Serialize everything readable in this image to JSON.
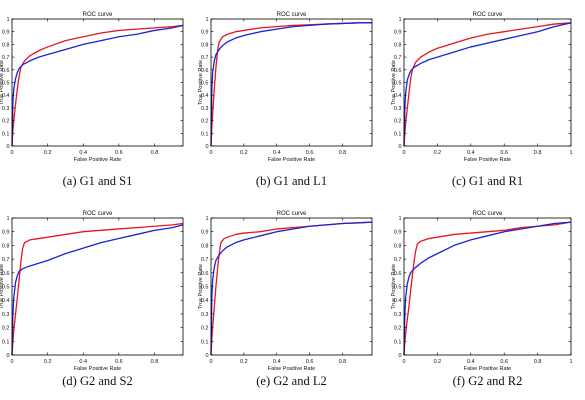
{
  "colors": {
    "red": "#e8141e",
    "blue": "#1a22d6",
    "axis": "#000000"
  },
  "chart_data": [
    {
      "type": "line",
      "title": "ROC curve",
      "xlabel": "False Positive Rate",
      "ylabel": "True Positive Rate",
      "caption": "(a) G1 and S1",
      "xlim": [
        0,
        0.96
      ],
      "ylim": [
        0,
        1
      ],
      "xticks": [
        "0",
        "0.2",
        "0.4",
        "0.6",
        "0.8"
      ],
      "yticks": [
        "0",
        "0.1",
        "0.2",
        "0.3",
        "0.4",
        "0.5",
        "0.6",
        "0.7",
        "0.8",
        "0.9",
        "1"
      ],
      "series": [
        {
          "color": "red",
          "x": [
            0,
            0.005,
            0.01,
            0.02,
            0.03,
            0.04,
            0.05,
            0.07,
            0.1,
            0.15,
            0.2,
            0.3,
            0.4,
            0.5,
            0.6,
            0.7,
            0.8,
            0.9,
            0.96
          ],
          "y": [
            0,
            0.12,
            0.2,
            0.33,
            0.45,
            0.55,
            0.62,
            0.67,
            0.71,
            0.75,
            0.78,
            0.83,
            0.86,
            0.89,
            0.91,
            0.92,
            0.93,
            0.94,
            0.95
          ]
        },
        {
          "color": "blue",
          "x": [
            0,
            0.005,
            0.01,
            0.02,
            0.03,
            0.04,
            0.06,
            0.1,
            0.15,
            0.2,
            0.3,
            0.4,
            0.5,
            0.6,
            0.7,
            0.8,
            0.9,
            0.96
          ],
          "y": [
            0,
            0.35,
            0.45,
            0.53,
            0.58,
            0.61,
            0.64,
            0.67,
            0.7,
            0.72,
            0.76,
            0.8,
            0.83,
            0.86,
            0.88,
            0.91,
            0.93,
            0.95
          ]
        }
      ]
    },
    {
      "type": "line",
      "title": "ROC curve",
      "xlabel": "False Positive Rate",
      "ylabel": "True Positive Rate",
      "caption": "(b) G1 and L1",
      "xlim": [
        0,
        0.98
      ],
      "ylim": [
        0,
        1
      ],
      "xticks": [
        "0",
        "0.2",
        "0.4",
        "0.6",
        "0.8"
      ],
      "yticks": [
        "0",
        "0.1",
        "0.2",
        "0.3",
        "0.4",
        "0.5",
        "0.6",
        "0.7",
        "0.8",
        "0.9",
        "1"
      ],
      "series": [
        {
          "color": "red",
          "x": [
            0,
            0.005,
            0.01,
            0.02,
            0.03,
            0.04,
            0.05,
            0.07,
            0.1,
            0.15,
            0.2,
            0.3,
            0.4,
            0.5,
            0.6,
            0.7,
            0.8,
            0.9,
            0.98
          ],
          "y": [
            0,
            0.15,
            0.25,
            0.45,
            0.62,
            0.75,
            0.82,
            0.86,
            0.88,
            0.9,
            0.91,
            0.93,
            0.94,
            0.95,
            0.955,
            0.96,
            0.965,
            0.97,
            0.97
          ]
        },
        {
          "color": "blue",
          "x": [
            0,
            0.005,
            0.01,
            0.02,
            0.03,
            0.05,
            0.07,
            0.1,
            0.15,
            0.2,
            0.3,
            0.4,
            0.5,
            0.6,
            0.7,
            0.8,
            0.9,
            0.98
          ],
          "y": [
            0,
            0.45,
            0.58,
            0.67,
            0.72,
            0.76,
            0.79,
            0.82,
            0.85,
            0.87,
            0.9,
            0.92,
            0.94,
            0.95,
            0.96,
            0.965,
            0.97,
            0.97
          ]
        }
      ]
    },
    {
      "type": "line",
      "title": "ROC curve",
      "xlabel": "False Positive Rate",
      "ylabel": "True Positive Rate",
      "caption": "(c) G1 and R1",
      "xlim": [
        0,
        1
      ],
      "ylim": [
        0,
        1
      ],
      "xticks": [
        "0",
        "0.2",
        "0.4",
        "0.6",
        "0.8",
        "1"
      ],
      "yticks": [
        "0",
        "0.1",
        "0.2",
        "0.3",
        "0.4",
        "0.5",
        "0.6",
        "0.7",
        "0.8",
        "0.9",
        "1"
      ],
      "series": [
        {
          "color": "red",
          "x": [
            0,
            0.005,
            0.01,
            0.02,
            0.03,
            0.04,
            0.05,
            0.07,
            0.1,
            0.15,
            0.2,
            0.3,
            0.4,
            0.5,
            0.6,
            0.7,
            0.8,
            0.9,
            1
          ],
          "y": [
            0,
            0.1,
            0.18,
            0.3,
            0.42,
            0.53,
            0.6,
            0.66,
            0.7,
            0.74,
            0.77,
            0.81,
            0.85,
            0.88,
            0.9,
            0.92,
            0.94,
            0.96,
            0.97
          ]
        },
        {
          "color": "blue",
          "x": [
            0,
            0.005,
            0.01,
            0.02,
            0.03,
            0.04,
            0.06,
            0.1,
            0.15,
            0.2,
            0.3,
            0.4,
            0.5,
            0.6,
            0.7,
            0.8,
            0.9,
            1
          ],
          "y": [
            0,
            0.3,
            0.42,
            0.52,
            0.56,
            0.59,
            0.62,
            0.65,
            0.68,
            0.7,
            0.74,
            0.78,
            0.81,
            0.84,
            0.87,
            0.9,
            0.94,
            0.97
          ]
        }
      ]
    },
    {
      "type": "line",
      "title": "ROC curve",
      "xlabel": "False Positive Rate",
      "ylabel": "True Positive Rate",
      "caption": "(d) G2 and S2",
      "xlim": [
        0,
        0.96
      ],
      "ylim": [
        0,
        1
      ],
      "xticks": [
        "0",
        "0.2",
        "0.4",
        "0.6",
        "0.8"
      ],
      "yticks": [
        "0",
        "0.1",
        "0.2",
        "0.3",
        "0.4",
        "0.5",
        "0.6",
        "0.7",
        "0.8",
        "0.9",
        "1"
      ],
      "series": [
        {
          "color": "red",
          "x": [
            0,
            0.005,
            0.01,
            0.02,
            0.03,
            0.04,
            0.05,
            0.06,
            0.07,
            0.1,
            0.15,
            0.2,
            0.3,
            0.4,
            0.5,
            0.6,
            0.7,
            0.8,
            0.9,
            0.96
          ],
          "y": [
            0,
            0.1,
            0.18,
            0.3,
            0.42,
            0.55,
            0.68,
            0.78,
            0.82,
            0.84,
            0.85,
            0.86,
            0.88,
            0.9,
            0.91,
            0.92,
            0.93,
            0.94,
            0.95,
            0.96
          ]
        },
        {
          "color": "blue",
          "x": [
            0,
            0.005,
            0.01,
            0.02,
            0.03,
            0.04,
            0.06,
            0.1,
            0.15,
            0.2,
            0.3,
            0.4,
            0.5,
            0.6,
            0.7,
            0.8,
            0.9,
            0.96
          ],
          "y": [
            0,
            0.3,
            0.42,
            0.53,
            0.58,
            0.61,
            0.63,
            0.65,
            0.67,
            0.69,
            0.74,
            0.78,
            0.82,
            0.85,
            0.88,
            0.91,
            0.93,
            0.95
          ]
        }
      ]
    },
    {
      "type": "line",
      "title": "ROC curve",
      "xlabel": "False Positive Rate",
      "ylabel": "True Positive Rate",
      "caption": "(e) G2 and L2",
      "xlim": [
        0,
        0.98
      ],
      "ylim": [
        0,
        1
      ],
      "xticks": [
        "0",
        "0.2",
        "0.4",
        "0.6",
        "0.8"
      ],
      "yticks": [
        "0",
        "0.1",
        "0.2",
        "0.3",
        "0.4",
        "0.5",
        "0.6",
        "0.7",
        "0.8",
        "0.9",
        "1"
      ],
      "series": [
        {
          "color": "red",
          "x": [
            0,
            0.005,
            0.01,
            0.02,
            0.03,
            0.04,
            0.05,
            0.06,
            0.08,
            0.1,
            0.15,
            0.2,
            0.3,
            0.4,
            0.5,
            0.6,
            0.7,
            0.8,
            0.9,
            0.98
          ],
          "y": [
            0,
            0.12,
            0.2,
            0.35,
            0.5,
            0.63,
            0.74,
            0.82,
            0.85,
            0.86,
            0.88,
            0.89,
            0.9,
            0.92,
            0.93,
            0.94,
            0.95,
            0.96,
            0.965,
            0.97
          ]
        },
        {
          "color": "blue",
          "x": [
            0,
            0.005,
            0.01,
            0.02,
            0.03,
            0.05,
            0.07,
            0.1,
            0.15,
            0.2,
            0.3,
            0.4,
            0.5,
            0.6,
            0.7,
            0.8,
            0.9,
            0.98
          ],
          "y": [
            0,
            0.42,
            0.55,
            0.64,
            0.69,
            0.73,
            0.76,
            0.79,
            0.82,
            0.84,
            0.87,
            0.9,
            0.92,
            0.94,
            0.95,
            0.96,
            0.965,
            0.97
          ]
        }
      ]
    },
    {
      "type": "line",
      "title": "ROC curve",
      "xlabel": "False Positive Rate",
      "ylabel": "True Positive Rate",
      "caption": "(f) G2 and R2",
      "xlim": [
        0,
        1
      ],
      "ylim": [
        0,
        1
      ],
      "xticks": [
        "0",
        "0.2",
        "0.4",
        "0.6",
        "0.8",
        "1"
      ],
      "yticks": [
        "0",
        "0.1",
        "0.2",
        "0.3",
        "0.4",
        "0.5",
        "0.6",
        "0.7",
        "0.8",
        "0.9",
        "1"
      ],
      "series": [
        {
          "color": "red",
          "x": [
            0,
            0.005,
            0.01,
            0.02,
            0.03,
            0.04,
            0.05,
            0.06,
            0.07,
            0.08,
            0.1,
            0.15,
            0.2,
            0.3,
            0.4,
            0.5,
            0.6,
            0.7,
            0.8,
            0.9,
            1
          ],
          "y": [
            0,
            0.1,
            0.16,
            0.26,
            0.36,
            0.47,
            0.58,
            0.68,
            0.76,
            0.81,
            0.83,
            0.85,
            0.86,
            0.88,
            0.89,
            0.9,
            0.91,
            0.93,
            0.94,
            0.95,
            0.97
          ]
        },
        {
          "color": "blue",
          "x": [
            0,
            0.005,
            0.01,
            0.02,
            0.03,
            0.04,
            0.06,
            0.1,
            0.15,
            0.2,
            0.3,
            0.4,
            0.5,
            0.6,
            0.7,
            0.8,
            0.9,
            1
          ],
          "y": [
            0,
            0.3,
            0.42,
            0.52,
            0.57,
            0.6,
            0.63,
            0.67,
            0.71,
            0.74,
            0.8,
            0.84,
            0.87,
            0.9,
            0.92,
            0.94,
            0.96,
            0.97
          ]
        }
      ]
    }
  ]
}
